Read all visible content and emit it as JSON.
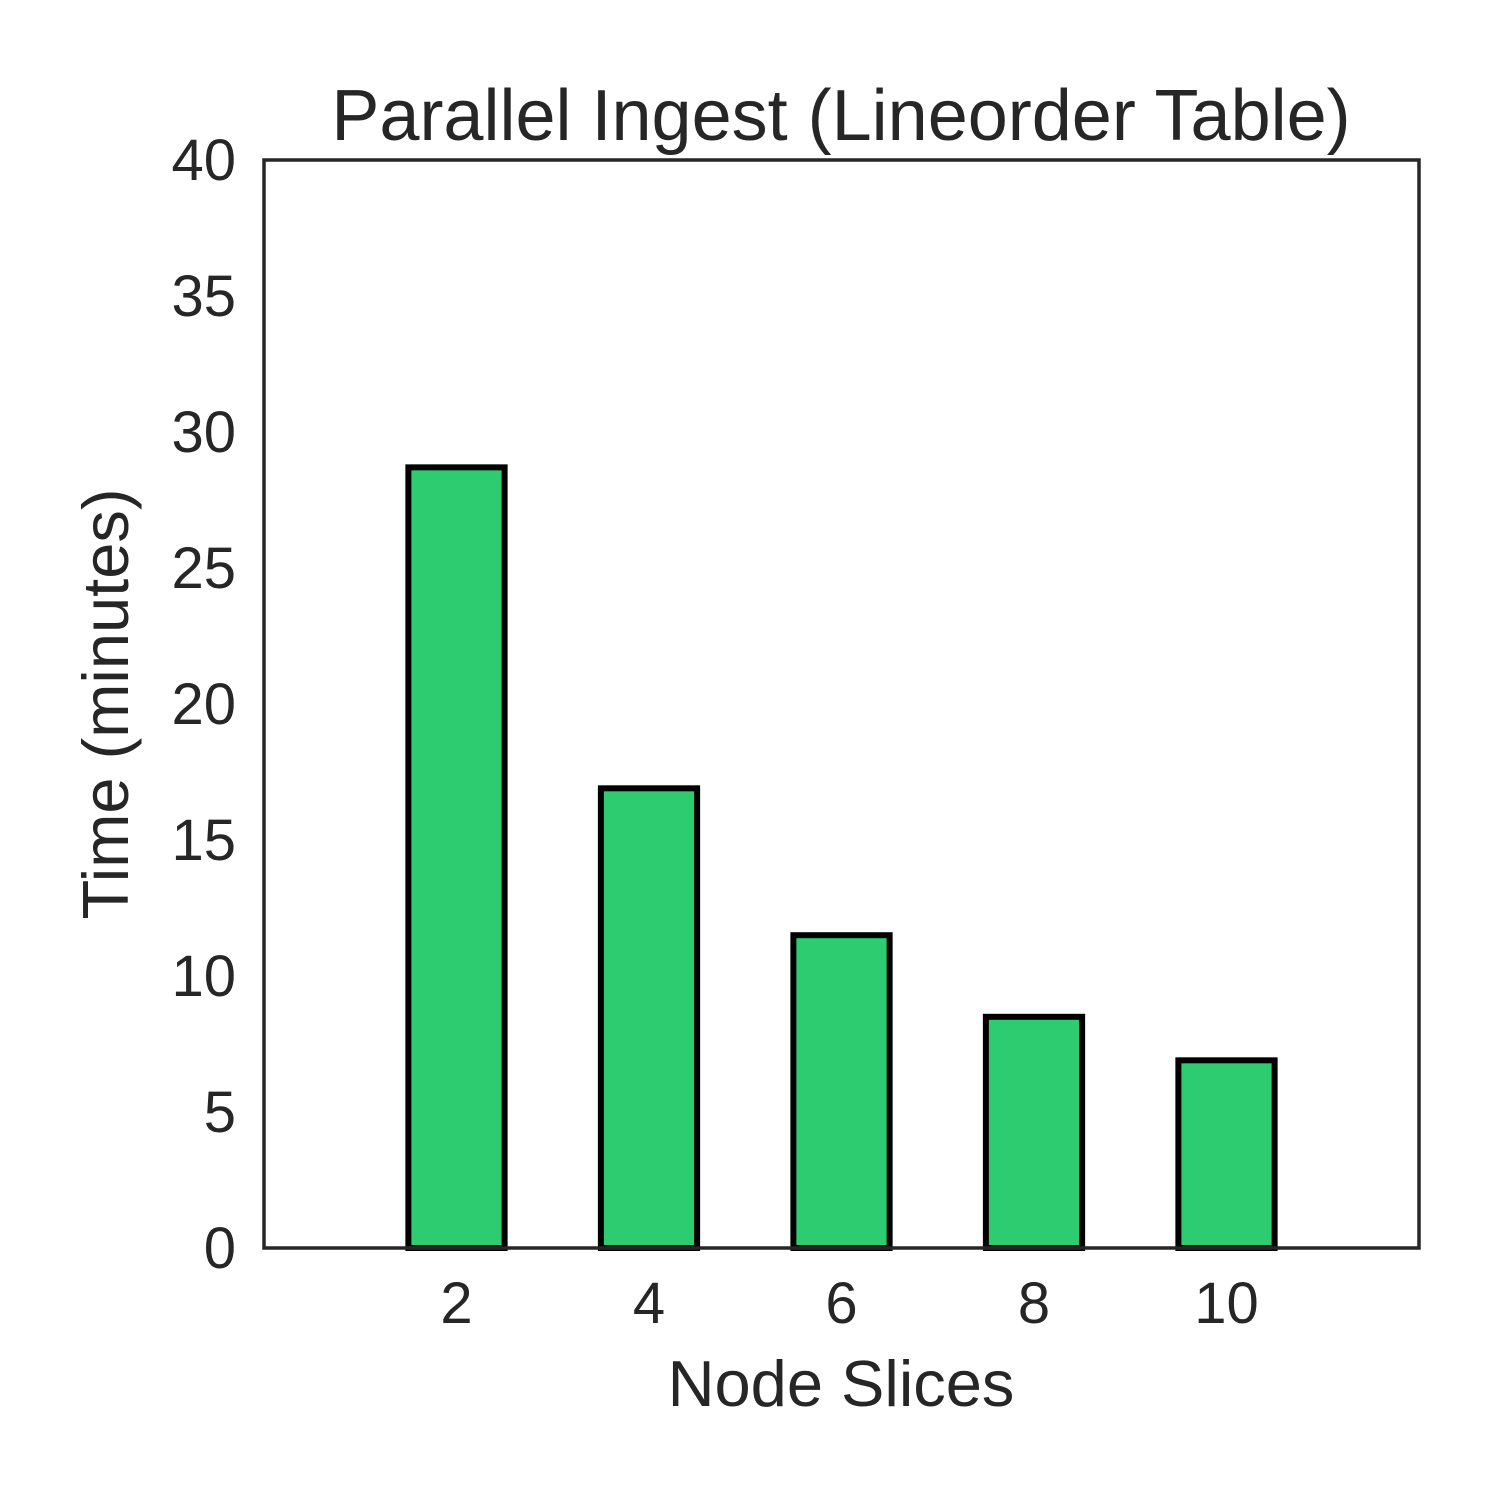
{
  "chart_data": {
    "type": "bar",
    "title": "Parallel Ingest (Lineorder Table)",
    "xlabel": "Node Slices",
    "ylabel": "Time (minutes)",
    "categories": [
      "2",
      "4",
      "6",
      "8",
      "10"
    ],
    "values": [
      28.7,
      16.9,
      11.5,
      8.5,
      6.9
    ],
    "ylim": [
      0,
      40
    ],
    "yticks": [
      0,
      5,
      10,
      15,
      20,
      25,
      30,
      35,
      40
    ],
    "grid": false,
    "legend": "none",
    "colors": {
      "bar_fill": "#2ecc71",
      "bar_edge": "#000000",
      "text": "#262626",
      "frame": "#262626"
    }
  }
}
